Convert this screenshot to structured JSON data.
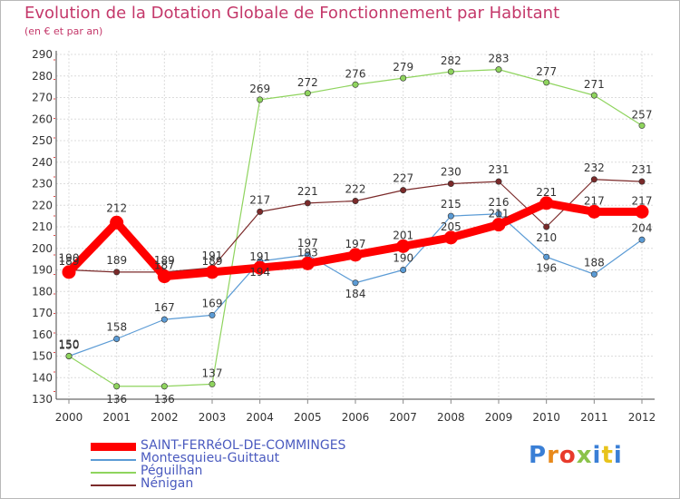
{
  "header": {
    "title": "Evolution de la Dotation Globale de Fonctionnement par Habitant",
    "subtitle": "(en € et par an)"
  },
  "logo": {
    "text": "Proxiti",
    "letter_colors": [
      "#3a7fd6",
      "#e8891b",
      "#e83b2c",
      "#8bc34a",
      "#3a7fd6",
      "#e8c31b",
      "#3a7fd6"
    ]
  },
  "chart_data": {
    "type": "line",
    "x": [
      "2000",
      "2001",
      "2002",
      "2003",
      "2004",
      "2005",
      "2006",
      "2007",
      "2008",
      "2009",
      "2010",
      "2011",
      "2012"
    ],
    "ylim": [
      130,
      290
    ],
    "yticks": [
      130,
      140,
      150,
      160,
      170,
      180,
      190,
      200,
      210,
      220,
      230,
      240,
      250,
      260,
      270,
      280,
      290
    ],
    "grid": true,
    "legend_position": "bottom",
    "series": [
      {
        "name": "SAINT-FERRéOL-DE-COMMINGES",
        "color": "#ff0000",
        "emphasis": true,
        "values": [
          189,
          212,
          187,
          189,
          191,
          193,
          197,
          201,
          205,
          211,
          221,
          217,
          217
        ],
        "labels": [
          "189",
          "212",
          "187",
          "189",
          "191",
          "193",
          "197",
          "201",
          "205",
          "211",
          "221",
          "217",
          "217"
        ]
      },
      {
        "name": "Montesquieu-Guittaut",
        "color": "#5b9bd5",
        "emphasis": false,
        "values": [
          150,
          158,
          167,
          169,
          194,
          197,
          184,
          190,
          215,
          216,
          196,
          188,
          204
        ],
        "labels": [
          "150",
          "158",
          "167",
          "169",
          "194",
          "197",
          "184",
          "190",
          "215",
          "216",
          "196",
          "188",
          "204"
        ]
      },
      {
        "name": "Péguilhan",
        "color": "#8fd45e",
        "emphasis": false,
        "values": [
          150,
          136,
          136,
          137,
          269,
          272,
          276,
          279,
          282,
          283,
          277,
          271,
          257
        ],
        "labels": [
          "150",
          "136",
          "136",
          "137",
          "269",
          "272",
          "276",
          "279",
          "282",
          "283",
          "277",
          "271",
          "257"
        ]
      },
      {
        "name": "Nénigan",
        "color": "#7b2a2a",
        "emphasis": false,
        "values": [
          190,
          189,
          189,
          191,
          217,
          221,
          222,
          227,
          230,
          231,
          210,
          232,
          231
        ],
        "labels": [
          "190",
          "189",
          "189",
          "191",
          "217",
          "221",
          "222",
          "227",
          "230",
          "231",
          "210",
          "232",
          "231"
        ]
      }
    ]
  }
}
